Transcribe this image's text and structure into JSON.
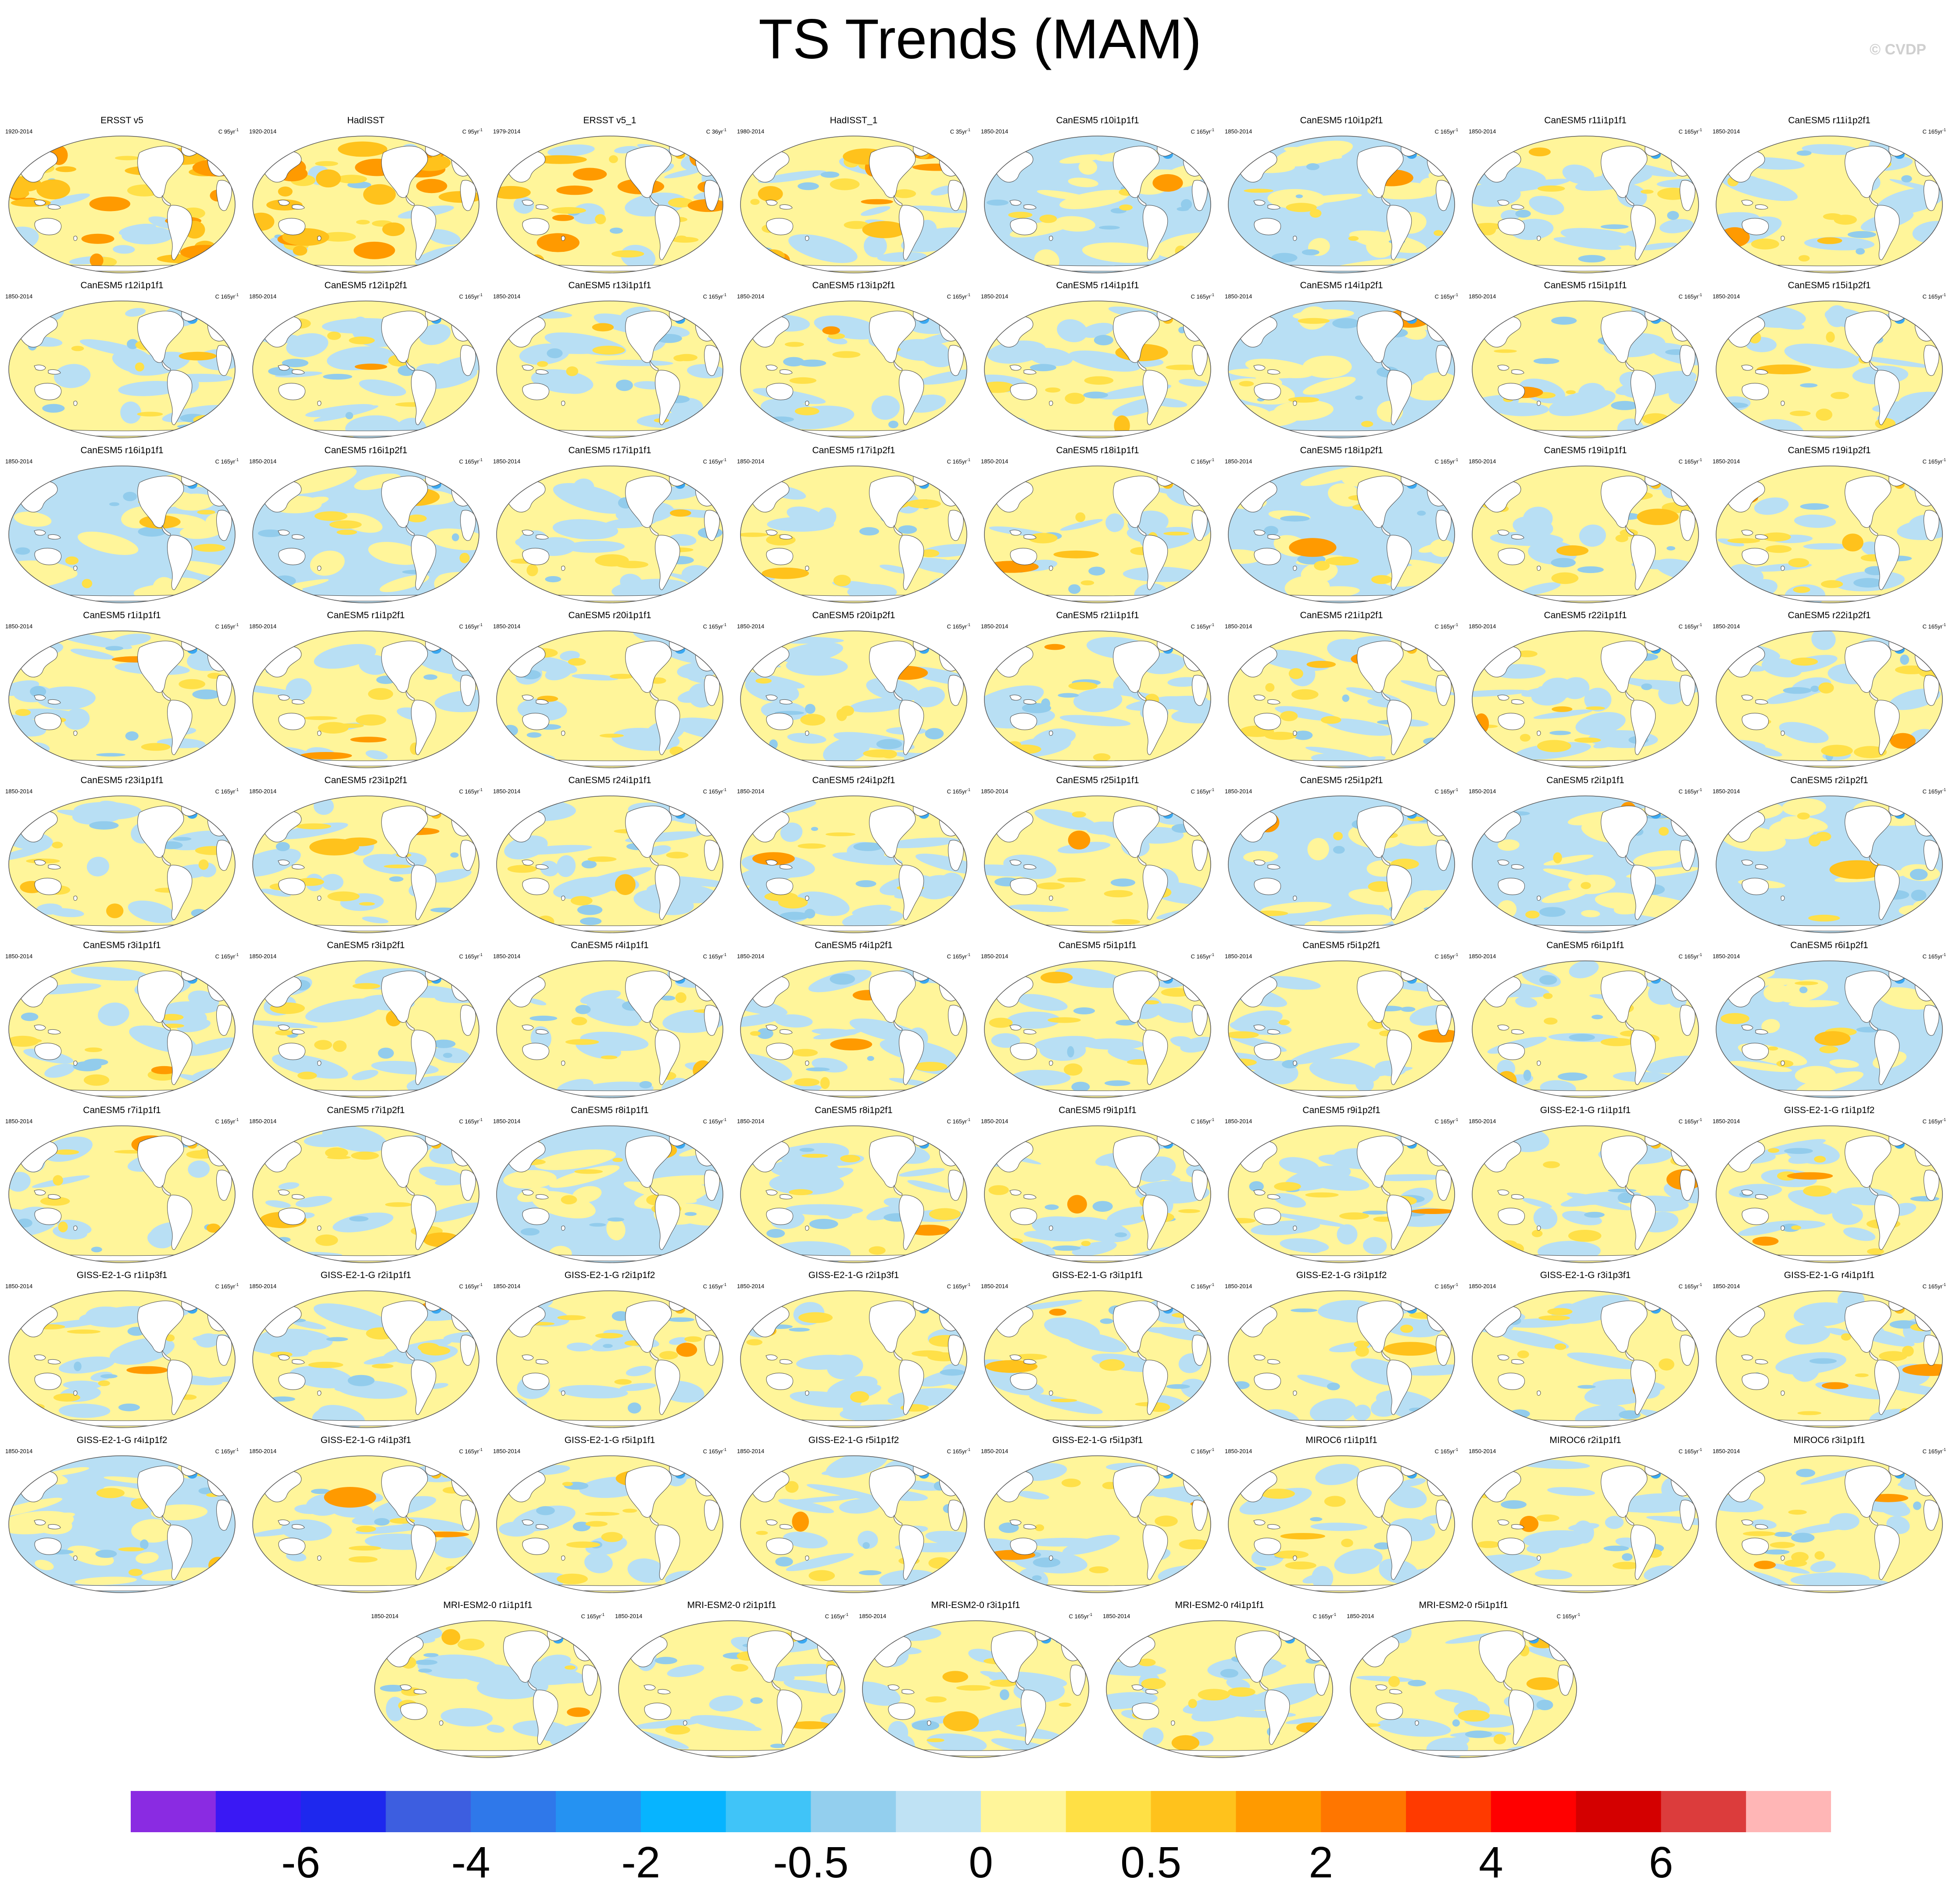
{
  "title": "TS Trends (MAM)",
  "watermark": "© CVDP",
  "panel_colors": {
    "ocean_cool": "#b8dff4",
    "ocean_warm": "#fff59a",
    "blue_mid": "#92ccec",
    "blue_deep": "#3aa8f2",
    "yellow_mid": "#ffe048",
    "orange_light": "#ffc21c",
    "orange": "#ff9a00",
    "land": "#ffffff",
    "coast": "#444444"
  },
  "colorbar": {
    "colors": [
      "#8a2be2",
      "#3a18f4",
      "#1e28ee",
      "#3d5ee0",
      "#2f78ea",
      "#2592f2",
      "#07b4ff",
      "#40c4f8",
      "#93cfee",
      "#bfe2f4",
      "#fff59a",
      "#ffe045",
      "#ffc21c",
      "#ff9a00",
      "#ff7600",
      "#ff3a00",
      "#ff0000",
      "#d40000",
      "#dc3c3c",
      "#ffb6b6"
    ],
    "labels": [
      {
        "text": "-6",
        "boundary": 2
      },
      {
        "text": "-4",
        "boundary": 4
      },
      {
        "text": "-2",
        "boundary": 6
      },
      {
        "text": "-0.5",
        "boundary": 8
      },
      {
        "text": "0",
        "boundary": 10
      },
      {
        "text": "0.5",
        "boundary": 12
      },
      {
        "text": "2",
        "boundary": 14
      },
      {
        "text": "4",
        "boundary": 16
      },
      {
        "text": "6",
        "boundary": 18
      }
    ]
  },
  "panels": [
    {
      "title": "ERSST v5",
      "period": "1920-2014",
      "units": "C 95yr",
      "sup": "-1",
      "warm": 0.92,
      "cool": 0.05,
      "hot": 0.55
    },
    {
      "title": "HadISST",
      "period": "1920-2014",
      "units": "C 95yr",
      "sup": "-1",
      "warm": 0.9,
      "cool": 0.05,
      "hot": 0.5
    },
    {
      "title": "ERSST v5_1",
      "period": "1979-2014",
      "units": "C 36yr",
      "sup": "-1",
      "warm": 0.72,
      "cool": 0.28,
      "hot": 0.28
    },
    {
      "title": "HadISST_1",
      "period": "1980-2014",
      "units": "C 35yr",
      "sup": "-1",
      "warm": 0.68,
      "cool": 0.3,
      "hot": 0.22
    },
    {
      "title": "CanESM5 r10i1p1f1",
      "period": "1850-2014",
      "units": "C 165yr",
      "sup": "-1",
      "warm": 0.4,
      "cool": 0.6,
      "hot": 0.02
    },
    {
      "title": "CanESM5 r10i1p2f1",
      "period": "1850-2014",
      "units": "C 165yr",
      "sup": "-1",
      "warm": 0.48,
      "cool": 0.52,
      "hot": 0.03
    },
    {
      "title": "CanESM5 r11i1p1f1",
      "period": "1850-2014",
      "units": "C 165yr",
      "sup": "-1",
      "warm": 0.5,
      "cool": 0.5,
      "hot": 0.03
    },
    {
      "title": "CanESM5 r11i1p2f1",
      "period": "1850-2014",
      "units": "C 165yr",
      "sup": "-1",
      "warm": 0.6,
      "cool": 0.4,
      "hot": 0.04
    },
    {
      "title": "CanESM5 r12i1p1f1",
      "period": "1850-2014",
      "units": "C 165yr",
      "sup": "-1",
      "warm": 0.58,
      "cool": 0.42,
      "hot": 0.03
    },
    {
      "title": "CanESM5 r12i1p2f1",
      "period": "1850-2014",
      "units": "C 165yr",
      "sup": "-1",
      "warm": 0.55,
      "cool": 0.45,
      "hot": 0.03
    },
    {
      "title": "CanESM5 r13i1p1f1",
      "period": "1850-2014",
      "units": "C 165yr",
      "sup": "-1",
      "warm": 0.5,
      "cool": 0.5,
      "hot": 0.02
    },
    {
      "title": "CanESM5 r13i1p2f1",
      "period": "1850-2014",
      "units": "C 165yr",
      "sup": "-1",
      "warm": 0.62,
      "cool": 0.38,
      "hot": 0.05
    },
    {
      "title": "CanESM5 r14i1p1f1",
      "period": "1850-2014",
      "units": "C 165yr",
      "sup": "-1",
      "warm": 0.64,
      "cool": 0.36,
      "hot": 0.05
    },
    {
      "title": "CanESM5 r14i1p2f1",
      "period": "1850-2014",
      "units": "C 165yr",
      "sup": "-1",
      "warm": 0.42,
      "cool": 0.58,
      "hot": 0.02
    },
    {
      "title": "CanESM5 r15i1p1f1",
      "period": "1850-2014",
      "units": "C 165yr",
      "sup": "-1",
      "warm": 0.55,
      "cool": 0.45,
      "hot": 0.04
    },
    {
      "title": "CanESM5 r15i1p2f1",
      "period": "1850-2014",
      "units": "C 165yr",
      "sup": "-1",
      "warm": 0.6,
      "cool": 0.4,
      "hot": 0.03
    },
    {
      "title": "CanESM5 r16i1p1f1",
      "period": "1850-2014",
      "units": "C 165yr",
      "sup": "-1",
      "warm": 0.45,
      "cool": 0.55,
      "hot": 0.02
    },
    {
      "title": "CanESM5 r16i1p2f1",
      "period": "1850-2014",
      "units": "C 165yr",
      "sup": "-1",
      "warm": 0.4,
      "cool": 0.6,
      "hot": 0.02
    },
    {
      "title": "CanESM5 r17i1p1f1",
      "period": "1850-2014",
      "units": "C 165yr",
      "sup": "-1",
      "warm": 0.5,
      "cool": 0.5,
      "hot": 0.02
    },
    {
      "title": "CanESM5 r17i1p2f1",
      "period": "1850-2014",
      "units": "C 165yr",
      "sup": "-1",
      "warm": 0.6,
      "cool": 0.4,
      "hot": 0.03
    },
    {
      "title": "CanESM5 r18i1p1f1",
      "period": "1850-2014",
      "units": "C 165yr",
      "sup": "-1",
      "warm": 0.66,
      "cool": 0.34,
      "hot": 0.05
    },
    {
      "title": "CanESM5 r18i1p2f1",
      "period": "1850-2014",
      "units": "C 165yr",
      "sup": "-1",
      "warm": 0.46,
      "cool": 0.54,
      "hot": 0.02
    },
    {
      "title": "CanESM5 r19i1p1f1",
      "period": "1850-2014",
      "units": "C 165yr",
      "sup": "-1",
      "warm": 0.64,
      "cool": 0.36,
      "hot": 0.05
    },
    {
      "title": "CanESM5 r19i1p2f1",
      "period": "1850-2014",
      "units": "C 165yr",
      "sup": "-1",
      "warm": 0.66,
      "cool": 0.34,
      "hot": 0.06
    },
    {
      "title": "CanESM5 r1i1p1f1",
      "period": "1850-2014",
      "units": "C 165yr",
      "sup": "-1",
      "warm": 0.55,
      "cool": 0.45,
      "hot": 0.03
    },
    {
      "title": "CanESM5 r1i1p2f1",
      "period": "1850-2014",
      "units": "C 165yr",
      "sup": "-1",
      "warm": 0.6,
      "cool": 0.4,
      "hot": 0.04
    },
    {
      "title": "CanESM5 r20i1p1f1",
      "period": "1850-2014",
      "units": "C 165yr",
      "sup": "-1",
      "warm": 0.52,
      "cool": 0.48,
      "hot": 0.03
    },
    {
      "title": "CanESM5 r20i1p2f1",
      "period": "1850-2014",
      "units": "C 165yr",
      "sup": "-1",
      "warm": 0.5,
      "cool": 0.5,
      "hot": 0.02
    },
    {
      "title": "CanESM5 r21i1p1f1",
      "period": "1850-2014",
      "units": "C 165yr",
      "sup": "-1",
      "warm": 0.5,
      "cool": 0.5,
      "hot": 0.03
    },
    {
      "title": "CanESM5 r21i1p2f1",
      "period": "1850-2014",
      "units": "C 165yr",
      "sup": "-1",
      "warm": 0.68,
      "cool": 0.32,
      "hot": 0.06
    },
    {
      "title": "CanESM5 r22i1p1f1",
      "period": "1850-2014",
      "units": "C 165yr",
      "sup": "-1",
      "warm": 0.5,
      "cool": 0.5,
      "hot": 0.04
    },
    {
      "title": "CanESM5 r22i1p2f1",
      "period": "1850-2014",
      "units": "C 165yr",
      "sup": "-1",
      "warm": 0.6,
      "cool": 0.4,
      "hot": 0.03
    },
    {
      "title": "CanESM5 r23i1p1f1",
      "period": "1850-2014",
      "units": "C 165yr",
      "sup": "-1",
      "warm": 0.6,
      "cool": 0.4,
      "hot": 0.04
    },
    {
      "title": "CanESM5 r23i1p2f1",
      "period": "1850-2014",
      "units": "C 165yr",
      "sup": "-1",
      "warm": 0.7,
      "cool": 0.3,
      "hot": 0.07
    },
    {
      "title": "CanESM5 r24i1p1f1",
      "period": "1850-2014",
      "units": "C 165yr",
      "sup": "-1",
      "warm": 0.5,
      "cool": 0.5,
      "hot": 0.02
    },
    {
      "title": "CanESM5 r24i1p2f1",
      "period": "1850-2014",
      "units": "C 165yr",
      "sup": "-1",
      "warm": 0.52,
      "cool": 0.48,
      "hot": 0.03
    },
    {
      "title": "CanESM5 r25i1p1f1",
      "period": "1850-2014",
      "units": "C 165yr",
      "sup": "-1",
      "warm": 0.6,
      "cool": 0.4,
      "hot": 0.08
    },
    {
      "title": "CanESM5 r25i1p2f1",
      "period": "1850-2014",
      "units": "C 165yr",
      "sup": "-1",
      "warm": 0.45,
      "cool": 0.55,
      "hot": 0.02
    },
    {
      "title": "CanESM5 r2i1p1f1",
      "period": "1850-2014",
      "units": "C 165yr",
      "sup": "-1",
      "warm": 0.42,
      "cool": 0.58,
      "hot": 0.02
    },
    {
      "title": "CanESM5 r2i1p2f1",
      "period": "1850-2014",
      "units": "C 165yr",
      "sup": "-1",
      "warm": 0.4,
      "cool": 0.6,
      "hot": 0.02
    },
    {
      "title": "CanESM5 r3i1p1f1",
      "period": "1850-2014",
      "units": "C 165yr",
      "sup": "-1",
      "warm": 0.58,
      "cool": 0.42,
      "hot": 0.03
    },
    {
      "title": "CanESM5 r3i1p2f1",
      "period": "1850-2014",
      "units": "C 165yr",
      "sup": "-1",
      "warm": 0.58,
      "cool": 0.42,
      "hot": 0.03
    },
    {
      "title": "CanESM5 r4i1p1f1",
      "period": "1850-2014",
      "units": "C 165yr",
      "sup": "-1",
      "warm": 0.52,
      "cool": 0.48,
      "hot": 0.03
    },
    {
      "title": "CanESM5 r4i1p2f1",
      "period": "1850-2014",
      "units": "C 165yr",
      "sup": "-1",
      "warm": 0.55,
      "cool": 0.45,
      "hot": 0.04
    },
    {
      "title": "CanESM5 r5i1p1f1",
      "period": "1850-2014",
      "units": "C 165yr",
      "sup": "-1",
      "warm": 0.55,
      "cool": 0.45,
      "hot": 0.03
    },
    {
      "title": "CanESM5 r5i1p2f1",
      "period": "1850-2014",
      "units": "C 165yr",
      "sup": "-1",
      "warm": 0.6,
      "cool": 0.4,
      "hot": 0.03
    },
    {
      "title": "CanESM5 r6i1p1f1",
      "period": "1850-2014",
      "units": "C 165yr",
      "sup": "-1",
      "warm": 0.5,
      "cool": 0.5,
      "hot": 0.03
    },
    {
      "title": "CanESM5 r6i1p2f1",
      "period": "1850-2014",
      "units": "C 165yr",
      "sup": "-1",
      "warm": 0.45,
      "cool": 0.55,
      "hot": 0.02
    },
    {
      "title": "CanESM5 r7i1p1f1",
      "period": "1850-2014",
      "units": "C 165yr",
      "sup": "-1",
      "warm": 0.66,
      "cool": 0.34,
      "hot": 0.06
    },
    {
      "title": "CanESM5 r7i1p2f1",
      "period": "1850-2014",
      "units": "C 165yr",
      "sup": "-1",
      "warm": 0.65,
      "cool": 0.35,
      "hot": 0.05
    },
    {
      "title": "CanESM5 r8i1p1f1",
      "period": "1850-2014",
      "units": "C 165yr",
      "sup": "-1",
      "warm": 0.45,
      "cool": 0.55,
      "hot": 0.03
    },
    {
      "title": "CanESM5 r8i1p2f1",
      "period": "1850-2014",
      "units": "C 165yr",
      "sup": "-1",
      "warm": 0.5,
      "cool": 0.5,
      "hot": 0.02
    },
    {
      "title": "CanESM5 r9i1p1f1",
      "period": "1850-2014",
      "units": "C 165yr",
      "sup": "-1",
      "warm": 0.5,
      "cool": 0.5,
      "hot": 0.02
    },
    {
      "title": "CanESM5 r9i1p2f1",
      "period": "1850-2014",
      "units": "C 165yr",
      "sup": "-1",
      "warm": 0.55,
      "cool": 0.45,
      "hot": 0.03
    },
    {
      "title": "GISS-E2-1-G r1i1p1f1",
      "period": "1850-2014",
      "units": "C 165yr",
      "sup": "-1",
      "warm": 0.66,
      "cool": 0.34,
      "hot": 0.06
    },
    {
      "title": "GISS-E2-1-G r1i1p1f2",
      "period": "1850-2014",
      "units": "C 165yr",
      "sup": "-1",
      "warm": 0.62,
      "cool": 0.38,
      "hot": 0.04
    },
    {
      "title": "GISS-E2-1-G r1i1p3f1",
      "period": "1850-2014",
      "units": "C 165yr",
      "sup": "-1",
      "warm": 0.58,
      "cool": 0.42,
      "hot": 0.03
    },
    {
      "title": "GISS-E2-1-G r2i1p1f1",
      "period": "1850-2014",
      "units": "C 165yr",
      "sup": "-1",
      "warm": 0.55,
      "cool": 0.45,
      "hot": 0.03
    },
    {
      "title": "GISS-E2-1-G r2i1p1f2",
      "period": "1850-2014",
      "units": "C 165yr",
      "sup": "-1",
      "warm": 0.65,
      "cool": 0.35,
      "hot": 0.06
    },
    {
      "title": "GISS-E2-1-G r2i1p3f1",
      "period": "1850-2014",
      "units": "C 165yr",
      "sup": "-1",
      "warm": 0.6,
      "cool": 0.4,
      "hot": 0.03
    },
    {
      "title": "GISS-E2-1-G r3i1p1f1",
      "period": "1850-2014",
      "units": "C 165yr",
      "sup": "-1",
      "warm": 0.62,
      "cool": 0.38,
      "hot": 0.05
    },
    {
      "title": "GISS-E2-1-G r3i1p1f2",
      "period": "1850-2014",
      "units": "C 165yr",
      "sup": "-1",
      "warm": 0.55,
      "cool": 0.45,
      "hot": 0.03
    },
    {
      "title": "GISS-E2-1-G r3i1p3f1",
      "period": "1850-2014",
      "units": "C 165yr",
      "sup": "-1",
      "warm": 0.6,
      "cool": 0.4,
      "hot": 0.03
    },
    {
      "title": "GISS-E2-1-G r4i1p1f1",
      "period": "1850-2014",
      "units": "C 165yr",
      "sup": "-1",
      "warm": 0.64,
      "cool": 0.36,
      "hot": 0.05
    },
    {
      "title": "GISS-E2-1-G r4i1p1f2",
      "period": "1850-2014",
      "units": "C 165yr",
      "sup": "-1",
      "warm": 0.48,
      "cool": 0.52,
      "hot": 0.02
    },
    {
      "title": "GISS-E2-1-G r4i1p3f1",
      "period": "1850-2014",
      "units": "C 165yr",
      "sup": "-1",
      "warm": 0.66,
      "cool": 0.34,
      "hot": 0.05
    },
    {
      "title": "GISS-E2-1-G r5i1p1f1",
      "period": "1850-2014",
      "units": "C 165yr",
      "sup": "-1",
      "warm": 0.6,
      "cool": 0.4,
      "hot": 0.02
    },
    {
      "title": "GISS-E2-1-G r5i1p1f2",
      "period": "1850-2014",
      "units": "C 165yr",
      "sup": "-1",
      "warm": 0.55,
      "cool": 0.45,
      "hot": 0.03
    },
    {
      "title": "GISS-E2-1-G r5i1p3f1",
      "period": "1850-2014",
      "units": "C 165yr",
      "sup": "-1",
      "warm": 0.62,
      "cool": 0.38,
      "hot": 0.06
    },
    {
      "title": "MIROC6 r1i1p1f1",
      "period": "1850-2014",
      "units": "C 165yr",
      "sup": "-1",
      "warm": 0.6,
      "cool": 0.4,
      "hot": 0.05
    },
    {
      "title": "MIROC6 r2i1p1f1",
      "period": "1850-2014",
      "units": "C 165yr",
      "sup": "-1",
      "warm": 0.5,
      "cool": 0.5,
      "hot": 0.03
    },
    {
      "title": "MIROC6 r3i1p1f1",
      "period": "1850-2014",
      "units": "C 165yr",
      "sup": "-1",
      "warm": 0.55,
      "cool": 0.45,
      "hot": 0.04
    },
    {
      "title": "MRI-ESM2-0 r1i1p1f1",
      "period": "1850-2014",
      "units": "C 165yr",
      "sup": "-1",
      "warm": 0.55,
      "cool": 0.45,
      "hot": 0.04
    },
    {
      "title": "MRI-ESM2-0 r2i1p1f1",
      "period": "1850-2014",
      "units": "C 165yr",
      "sup": "-1",
      "warm": 0.5,
      "cool": 0.5,
      "hot": 0.03
    },
    {
      "title": "MRI-ESM2-0 r3i1p1f1",
      "period": "1850-2014",
      "units": "C 165yr",
      "sup": "-1",
      "warm": 0.6,
      "cool": 0.4,
      "hot": 0.04
    },
    {
      "title": "MRI-ESM2-0 r4i1p1f1",
      "period": "1850-2014",
      "units": "C 165yr",
      "sup": "-1",
      "warm": 0.58,
      "cool": 0.42,
      "hot": 0.05
    },
    {
      "title": "MRI-ESM2-0 r5i1p1f1",
      "period": "1850-2014",
      "units": "C 165yr",
      "sup": "-1",
      "warm": 0.6,
      "cool": 0.4,
      "hot": 0.04
    }
  ]
}
